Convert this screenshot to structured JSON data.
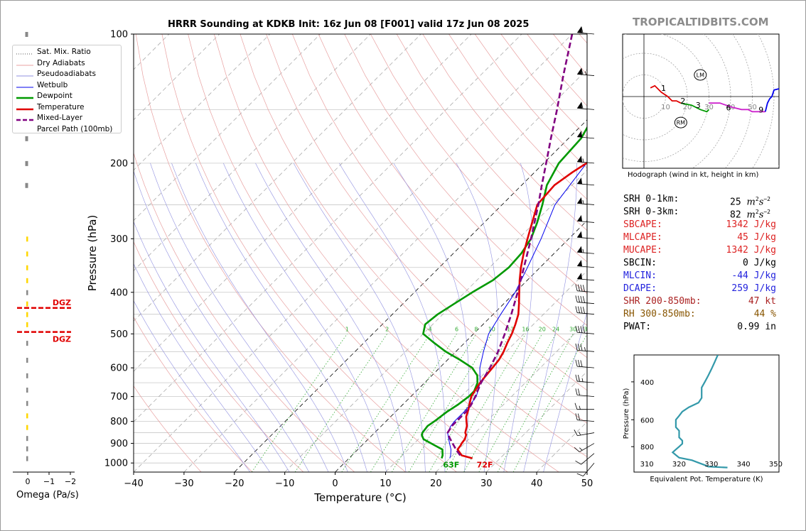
{
  "header": {
    "title": "HRRR Sounding at KDKB Init: 16z Jun 08 [F001] valid 17z Jun 08 2025",
    "brand": "TROPICALTIDBITS.COM"
  },
  "colors": {
    "temperature": "#e00000",
    "dewpoint": "#009900",
    "wetbulb": "#0000ee",
    "parcel": "#800080",
    "dry_adiabat": "#e8a0a0",
    "pseudoadiabat": "#9090e0",
    "mixing_ratio": "#33aa33",
    "theta_e": "#3399aa"
  },
  "legend": {
    "items": [
      {
        "label": "Sat. Mix. Ratio",
        "style": "dotted",
        "color": "#555555"
      },
      {
        "label": "Dry Adiabats",
        "style": "solid",
        "color": "#e8a0a0"
      },
      {
        "label": "Pseudoadiabats",
        "style": "solid",
        "color": "#9090e0"
      },
      {
        "label": "Wetbulb",
        "style": "solid",
        "color": "#0000ee"
      },
      {
        "label": "Dewpoint",
        "style": "thick",
        "color": "#009900"
      },
      {
        "label": "Temperature",
        "style": "thick",
        "color": "#e00000"
      },
      {
        "label": "Mixed-Layer",
        "style": "dashed",
        "color": "#800080"
      },
      {
        "label": "Parcel Path (100mb)",
        "style": "none",
        "color": "#800080"
      }
    ]
  },
  "skewt": {
    "xlabel": "Temperature (°C)",
    "ylabel": "Pressure (hPa)",
    "xlim": [
      -40,
      50
    ],
    "xticks": [
      "−40",
      "−30",
      "−20",
      "−10",
      "0",
      "10",
      "20",
      "30",
      "40",
      "50"
    ],
    "pressure_ticks": [
      "100",
      "200",
      "300",
      "400",
      "500",
      "600",
      "700",
      "800",
      "900",
      "1000"
    ],
    "surface_temp_label": "72F",
    "surface_dewpoint_label": "63F",
    "mixing_ratio_labels": [
      "1",
      "2",
      "4",
      "6",
      "8",
      "10",
      "13",
      "16",
      "20",
      "24",
      "30",
      "36"
    ]
  },
  "chart_data": [
    {
      "type": "line",
      "name": "skewt",
      "xlabel": "Temperature (°C)",
      "ylabel": "Pressure (hPa)",
      "xlim": [
        -40,
        50
      ],
      "ylim": [
        1050,
        100
      ],
      "series": [
        {
          "name": "Temperature",
          "p": [
            975,
            960,
            945,
            930,
            910,
            900,
            880,
            860,
            850,
            820,
            800,
            780,
            750,
            725,
            700,
            650,
            600,
            575,
            550,
            525,
            500,
            475,
            450,
            425,
            400,
            375,
            350,
            325,
            300,
            275,
            250,
            225,
            210,
            200,
            175,
            150,
            125,
            100
          ],
          "t": [
            24.5,
            21.8,
            20.8,
            19.8,
            19.6,
            19.4,
            19.2,
            18.6,
            18.0,
            17.0,
            16.0,
            15.0,
            14.0,
            13.0,
            12.0,
            11.0,
            10.5,
            10.2,
            9.5,
            8.5,
            7.6,
            6.4,
            5.0,
            3.0,
            0.8,
            -1.5,
            -3.8,
            -6.0,
            -8.2,
            -10.5,
            -13.0,
            -13.5,
            -12.5,
            -11.5,
            -10.0,
            -8.0,
            -6.0,
            -4.5
          ]
        },
        {
          "name": "Dewpoint",
          "p": [
            975,
            960,
            930,
            910,
            880,
            860,
            850,
            820,
            800,
            760,
            730,
            700,
            680,
            650,
            625,
            600,
            575,
            550,
            525,
            500,
            475,
            450,
            425,
            400,
            375,
            350,
            325,
            300,
            275,
            250,
            225,
            200,
            175,
            150,
            125,
            100
          ],
          "t": [
            18.4,
            18.0,
            16.8,
            14.5,
            11.0,
            9.8,
            9.5,
            9.2,
            9.6,
            10.2,
            11.0,
            11.5,
            11.5,
            10.5,
            9.0,
            6.5,
            2.5,
            -2.0,
            -6.0,
            -10.0,
            -11.5,
            -11.0,
            -9.8,
            -8.5,
            -6.8,
            -6.2,
            -6.5,
            -7.5,
            -9.5,
            -12.0,
            -15.0,
            -17.0,
            -17.5,
            -20.0,
            -24.5,
            -27.5
          ]
        },
        {
          "name": "Wetbulb",
          "p": [
            975,
            960,
            930,
            900,
            870,
            850,
            820,
            800,
            760,
            730,
            700,
            650,
            600,
            550,
            500,
            450,
            400,
            350,
            300,
            250,
            200,
            150,
            100
          ],
          "t": [
            20.0,
            19.6,
            18.5,
            17.0,
            15.5,
            14.5,
            13.8,
            13.6,
            13.6,
            13.4,
            13.0,
            11.0,
            8.0,
            5.5,
            3.0,
            1.5,
            0.0,
            -2.5,
            -5.5,
            -9.5,
            -11.5,
            -8.0,
            -4.5
          ]
        },
        {
          "name": "Mixed-Layer Parcel Path (100mb)",
          "p": [
            960,
            930,
            900,
            875,
            850,
            820,
            800,
            760,
            730,
            700,
            650,
            600,
            550,
            500,
            450,
            400,
            350,
            300,
            250,
            225,
            200,
            175,
            150,
            125,
            100
          ],
          "t": [
            21.5,
            19.5,
            17.6,
            16.0,
            14.5,
            14.0,
            14.0,
            14.0,
            13.6,
            12.8,
            11.2,
            10.0,
            8.4,
            6.2,
            3.6,
            0.5,
            -3.2,
            -7.5,
            -12.8,
            -16.0,
            -19.5,
            -23.5,
            -28.0,
            -33.5,
            -40.0
          ]
        }
      ],
      "wind_barbs": [
        {
          "p": 100,
          "speed_kt": 60,
          "dir_deg": 275
        },
        {
          "p": 125,
          "speed_kt": 65,
          "dir_deg": 275
        },
        {
          "p": 150,
          "speed_kt": 60,
          "dir_deg": 275
        },
        {
          "p": 175,
          "speed_kt": 50,
          "dir_deg": 275
        },
        {
          "p": 200,
          "speed_kt": 55,
          "dir_deg": 275
        },
        {
          "p": 225,
          "speed_kt": 50,
          "dir_deg": 275
        },
        {
          "p": 250,
          "speed_kt": 55,
          "dir_deg": 275
        },
        {
          "p": 275,
          "speed_kt": 50,
          "dir_deg": 275
        },
        {
          "p": 300,
          "speed_kt": 50,
          "dir_deg": 275
        },
        {
          "p": 325,
          "speed_kt": 55,
          "dir_deg": 275
        },
        {
          "p": 350,
          "speed_kt": 50,
          "dir_deg": 275
        },
        {
          "p": 375,
          "speed_kt": 50,
          "dir_deg": 275
        },
        {
          "p": 400,
          "speed_kt": 40,
          "dir_deg": 275
        },
        {
          "p": 425,
          "speed_kt": 40,
          "dir_deg": 275
        },
        {
          "p": 450,
          "speed_kt": 40,
          "dir_deg": 275
        },
        {
          "p": 500,
          "speed_kt": 40,
          "dir_deg": 275
        },
        {
          "p": 550,
          "speed_kt": 35,
          "dir_deg": 275
        },
        {
          "p": 600,
          "speed_kt": 30,
          "dir_deg": 275
        },
        {
          "p": 650,
          "speed_kt": 25,
          "dir_deg": 275
        },
        {
          "p": 700,
          "speed_kt": 20,
          "dir_deg": 275
        },
        {
          "p": 750,
          "speed_kt": 15,
          "dir_deg": 270
        },
        {
          "p": 800,
          "speed_kt": 20,
          "dir_deg": 275
        },
        {
          "p": 850,
          "speed_kt": 15,
          "dir_deg": 260
        },
        {
          "p": 900,
          "speed_kt": 15,
          "dir_deg": 240
        },
        {
          "p": 950,
          "speed_kt": 10,
          "dir_deg": 230
        },
        {
          "p": 1000,
          "speed_kt": 10,
          "dir_deg": 220
        }
      ]
    },
    {
      "type": "line",
      "name": "hodograph",
      "caption": "Hodograph (wind in kt, height in km)",
      "ring_labels": [
        "10",
        "20",
        "30",
        "40",
        "50"
      ],
      "height_labels": [
        "1",
        "2",
        "3",
        "6",
        "9"
      ],
      "markers": [
        "LM",
        "RM"
      ],
      "segments": [
        {
          "color": "#e00000",
          "uv": [
            [
              3,
              4
            ],
            [
              5,
              5
            ],
            [
              8,
              2
            ],
            [
              11,
              0
            ],
            [
              13,
              -2
            ],
            [
              15,
              -2
            ],
            [
              17,
              -3
            ]
          ]
        },
        {
          "color": "#009900",
          "uv": [
            [
              17,
              -3
            ],
            [
              22,
              -4
            ],
            [
              26,
              -6
            ],
            [
              29,
              -7
            ],
            [
              30,
              -6
            ]
          ]
        },
        {
          "color": "#cc22cc",
          "uv": [
            [
              30,
              -3
            ],
            [
              35,
              -3
            ],
            [
              41,
              -5
            ],
            [
              45,
              -6
            ],
            [
              48,
              -6
            ],
            [
              50,
              -7
            ],
            [
              56,
              -7
            ]
          ]
        },
        {
          "color": "#0000ee",
          "uv": [
            [
              56,
              -7
            ],
            [
              57,
              -3
            ],
            [
              58,
              -1
            ],
            [
              59,
              0
            ],
            [
              60,
              3
            ],
            [
              64,
              4
            ],
            [
              66,
              3
            ],
            [
              64,
              -3
            ]
          ]
        }
      ],
      "markers_uv": {
        "LM": [
          26,
          10
        ],
        "RM": [
          17,
          -12
        ]
      }
    },
    {
      "type": "line",
      "name": "theta_e_profile",
      "xlabel": "Equivalent Pot. Temperature (K)",
      "ylabel": "Pressure (hPa)",
      "xlim": [
        310,
        350
      ],
      "ylim": [
        1050,
        300
      ],
      "xticks": [
        "310",
        "320",
        "330",
        "340",
        "350"
      ],
      "yticks": [
        "400",
        "600",
        "800"
      ],
      "p": [
        1000,
        990,
        975,
        950,
        925,
        900,
        875,
        850,
        825,
        800,
        775,
        750,
        725,
        700,
        675,
        650,
        625,
        600,
        575,
        550,
        525,
        500,
        475,
        450,
        425,
        400,
        375,
        350,
        325,
        300
      ],
      "theta_e": [
        335,
        329,
        328,
        326,
        324,
        320,
        319,
        318,
        319,
        320,
        321,
        321,
        320,
        320,
        320,
        319,
        319,
        319,
        320,
        321,
        323,
        326,
        327,
        327,
        327,
        328,
        329,
        330,
        331,
        332
      ]
    },
    {
      "type": "line",
      "name": "omega",
      "xlabel": "Omega (Pa/s)",
      "xticks": [
        "0",
        "−1",
        "−2"
      ],
      "dgz_label": "DGZ"
    }
  ],
  "stats": [
    {
      "label": "SRH 0-1km:",
      "value": "25",
      "unit_main": "m",
      "color": "#000000"
    },
    {
      "label": "SRH 0-3km:",
      "value": "82",
      "unit_main": "m",
      "color": "#000000"
    },
    {
      "label": "SBCAPE:",
      "value": "1342 J/kg",
      "color": "#dd2222"
    },
    {
      "label": "MLCAPE:",
      "value": "45 J/kg",
      "color": "#dd2222"
    },
    {
      "label": "MUCAPE:",
      "value": "1342 J/kg",
      "color": "#dd2222"
    },
    {
      "label": "SBCIN:",
      "value": "0 J/kg",
      "color": "#000000"
    },
    {
      "label": "MLCIN:",
      "value": "-44 J/kg",
      "color": "#2222dd"
    },
    {
      "label": "DCAPE:",
      "value": "259 J/kg",
      "color": "#2222dd"
    },
    {
      "label": "SHR 200-850mb:",
      "value": "47 kt",
      "color": "#aa2222"
    },
    {
      "label": "RH 300-850mb:",
      "value": "44 %",
      "color": "#885500"
    },
    {
      "label": "PWAT:",
      "value": "0.99 in",
      "color": "#000000"
    }
  ]
}
